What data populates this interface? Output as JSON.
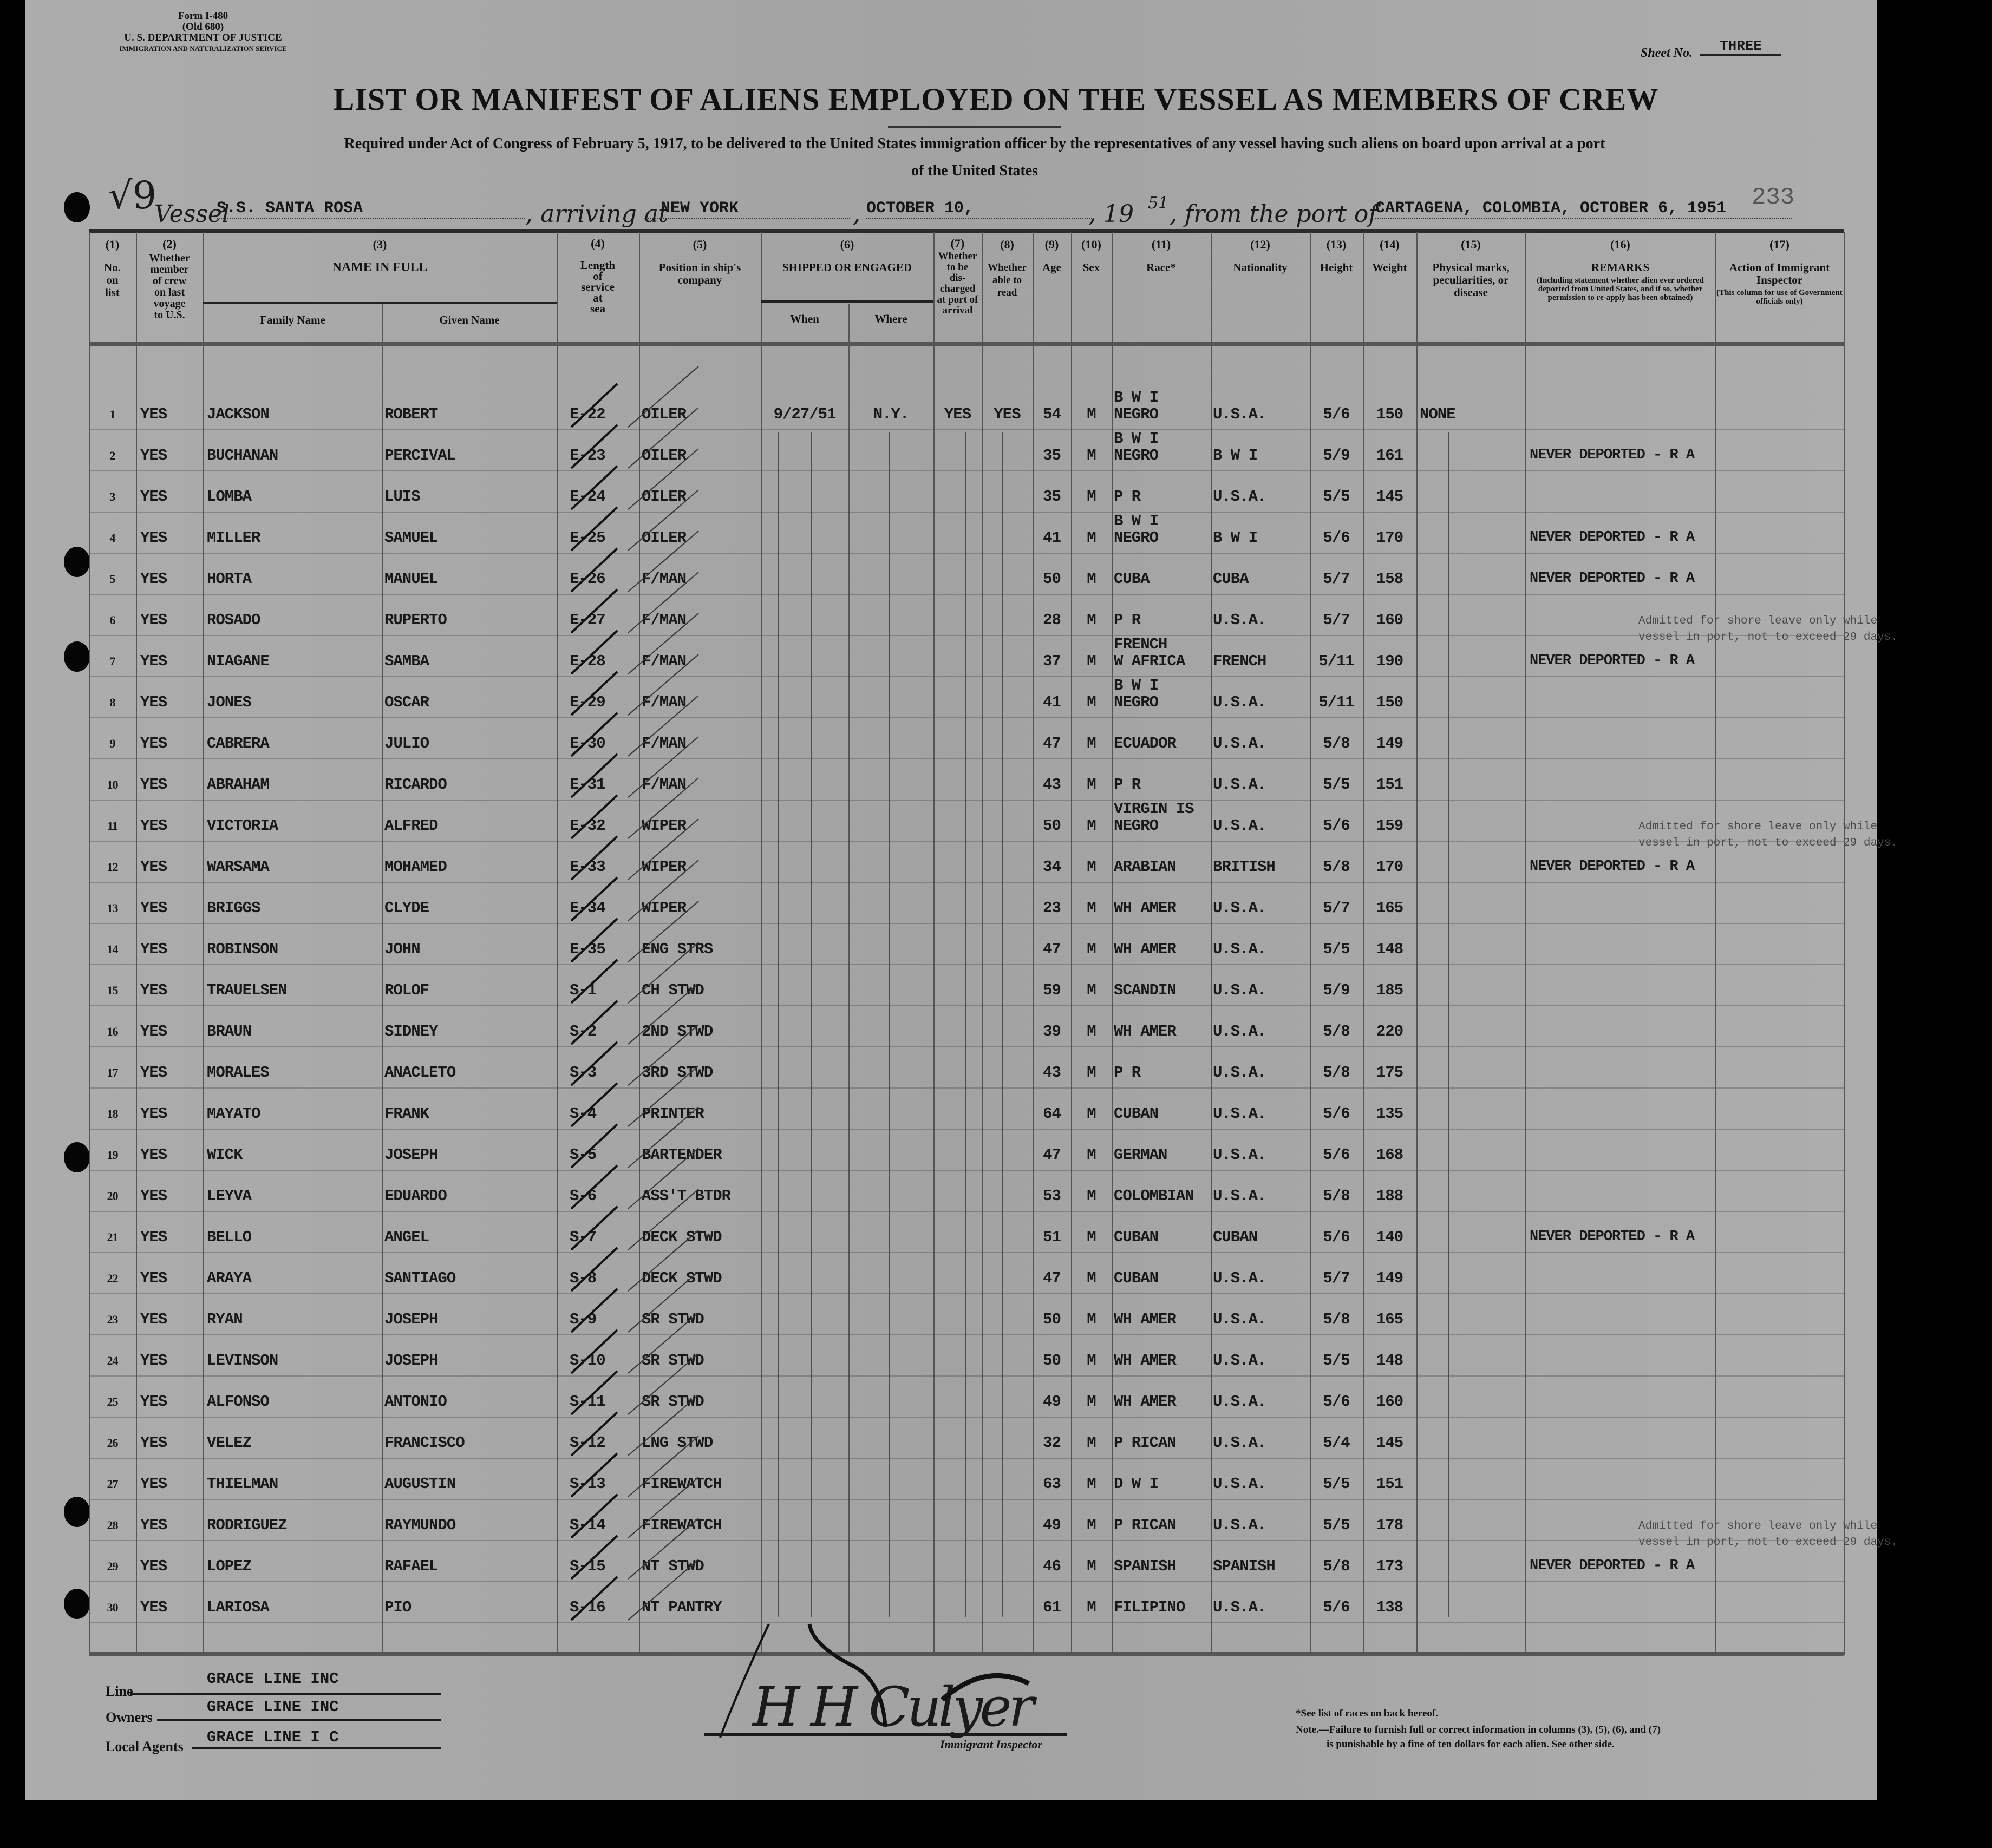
{
  "form": {
    "form_no": "Form I-480",
    "old_no": "(Old 680)",
    "department": "U. S. DEPARTMENT OF JUSTICE",
    "service": "IMMIGRATION AND NATURALIZATION SERVICE",
    "sheet_label": "Sheet No.",
    "sheet_no": "THREE",
    "stamp_number": "233"
  },
  "title": "LIST OR MANIFEST OF ALIENS EMPLOYED ON THE VESSEL AS MEMBERS OF CREW",
  "subtitle_line1": "Required under Act of Congress of February 5, 1917, to be delivered to the United States immigration officer by the representatives of any vessel having such aliens on board upon arrival at a port",
  "subtitle_line2": "of the United States",
  "voyage": {
    "handwritten_mark": "√9",
    "vessel_label": "Vessel",
    "vessel": "S.S. SANTA ROSA",
    "arriving_label": ", arriving at",
    "arriving_at": "NEW YORK",
    "date": "OCTOBER 10,",
    "year_prefix": ", 19",
    "year_suffix": "51",
    "from_label": ", from the port of",
    "from_port": "CARTAGENA, COLOMBIA, OCTOBER 6, 1951"
  },
  "headers": {
    "c1": {
      "num": "(1)",
      "text": "No.\non\nlist"
    },
    "c2": {
      "num": "(2)",
      "text": "Whether\nmember\nof crew\non last\nvoyage\nto U.S."
    },
    "c3": {
      "num": "(3)",
      "text": "NAME IN FULL",
      "family": "Family Name",
      "given": "Given Name"
    },
    "c4": {
      "num": "(4)",
      "text": "Length\nof\nservice\nat\nsea"
    },
    "c5": {
      "num": "(5)",
      "text": "Position in ship's\ncompany"
    },
    "c6": {
      "num": "(6)",
      "text": "SHIPPED OR ENGAGED",
      "when": "When",
      "where": "Where"
    },
    "c7": {
      "num": "(7)",
      "text": "Whether\nto be\ndis-\ncharged\nat port of\narrival"
    },
    "c8": {
      "num": "(8)",
      "text": "Whether\nable to\nread"
    },
    "c9": {
      "num": "(9)",
      "text": "Age"
    },
    "c10": {
      "num": "(10)",
      "text": "Sex"
    },
    "c11": {
      "num": "(11)",
      "text": "Race*"
    },
    "c12": {
      "num": "(12)",
      "text": "Nationality"
    },
    "c13": {
      "num": "(13)",
      "text": "Height"
    },
    "c14": {
      "num": "(14)",
      "text": "Weight"
    },
    "c15": {
      "num": "(15)",
      "text": "Physical marks,\npeculiarities, or\ndisease"
    },
    "c16": {
      "num": "(16)",
      "text": "REMARKS",
      "sub": "(Including statement whether alien ever ordered deported from United States, and if so, whether permission to re-apply has been obtained)"
    },
    "c17": {
      "num": "(17)",
      "text": "Action of Immigrant\nInspector",
      "sub": "(This column for use of Government officials only)"
    }
  },
  "rows": [
    {
      "no": "1",
      "crew": "YES",
      "family": "JACKSON",
      "given": "ROBERT",
      "service": "E-22",
      "position": "OILER",
      "when": "9/27/51",
      "where": "N.Y.",
      "discharged": "YES",
      "read": "YES",
      "age": "54",
      "sex": "M",
      "race": "B W I\nNEGRO",
      "nationality": "U.S.A.",
      "height": "5/6",
      "weight": "150",
      "marks": "NONE",
      "remarks": ""
    },
    {
      "no": "2",
      "crew": "YES",
      "family": "BUCHANAN",
      "given": "PERCIVAL",
      "service": "E-23",
      "position": "OILER",
      "age": "35",
      "sex": "M",
      "race": "B W I\nNEGRO",
      "nationality": "B W I",
      "height": "5/9",
      "weight": "161",
      "remarks": "NEVER DEPORTED - R A"
    },
    {
      "no": "3",
      "crew": "YES",
      "family": "LOMBA",
      "given": "LUIS",
      "service": "E-24",
      "position": "OILER",
      "age": "35",
      "sex": "M",
      "race": "P R",
      "nationality": "U.S.A.",
      "height": "5/5",
      "weight": "145",
      "remarks": ""
    },
    {
      "no": "4",
      "crew": "YES",
      "family": "MILLER",
      "given": "SAMUEL",
      "service": "E-25",
      "position": "OILER",
      "age": "41",
      "sex": "M",
      "race": "B W I\nNEGRO",
      "nationality": "B W I",
      "height": "5/6",
      "weight": "170",
      "remarks": "NEVER DEPORTED - R A"
    },
    {
      "no": "5",
      "crew": "YES",
      "family": "HORTA",
      "given": "MANUEL",
      "service": "E-26",
      "position": "F/MAN",
      "age": "50",
      "sex": "M",
      "race": "CUBA",
      "nationality": "CUBA",
      "height": "5/7",
      "weight": "158",
      "remarks": "NEVER DEPORTED - R A"
    },
    {
      "no": "6",
      "crew": "YES",
      "family": "ROSADO",
      "given": "RUPERTO",
      "service": "E-27",
      "position": "F/MAN",
      "age": "28",
      "sex": "M",
      "race": "P R",
      "nationality": "U.S.A.",
      "height": "5/7",
      "weight": "160",
      "remarks": ""
    },
    {
      "no": "7",
      "crew": "YES",
      "family": "NIAGANE",
      "given": "SAMBA",
      "service": "E-28",
      "position": "F/MAN",
      "age": "37",
      "sex": "M",
      "race": "FRENCH\nW AFRICA",
      "nationality": "FRENCH",
      "height": "5/11",
      "weight": "190",
      "remarks": "NEVER DEPORTED - R A",
      "stamp": "Admitted for shore leave only while vessel in port, not to exceed 29 days."
    },
    {
      "no": "8",
      "crew": "YES",
      "family": "JONES",
      "given": "OSCAR",
      "service": "E-29",
      "position": "F/MAN",
      "age": "41",
      "sex": "M",
      "race": "B W I\nNEGRO",
      "nationality": "U.S.A.",
      "height": "5/11",
      "weight": "150",
      "remarks": ""
    },
    {
      "no": "9",
      "crew": "YES",
      "family": "CABRERA",
      "given": "JULIO",
      "service": "E-30",
      "position": "F/MAN",
      "age": "47",
      "sex": "M",
      "race": "ECUADOR",
      "nationality": "U.S.A.",
      "height": "5/8",
      "weight": "149",
      "remarks": ""
    },
    {
      "no": "10",
      "crew": "YES",
      "family": "ABRAHAM",
      "given": "RICARDO",
      "service": "E-31",
      "position": "F/MAN",
      "age": "43",
      "sex": "M",
      "race": "P R",
      "nationality": "U.S.A.",
      "height": "5/5",
      "weight": "151",
      "remarks": ""
    },
    {
      "no": "11",
      "crew": "YES",
      "family": "VICTORIA",
      "given": "ALFRED",
      "service": "E-32",
      "position": "WIPER",
      "age": "50",
      "sex": "M",
      "race": "VIRGIN IS\nNEGRO",
      "nationality": "U.S.A.",
      "height": "5/6",
      "weight": "159",
      "remarks": ""
    },
    {
      "no": "12",
      "crew": "YES",
      "family": "WARSAMA",
      "given": "MOHAMED",
      "service": "E-33",
      "position": "WIPER",
      "age": "34",
      "sex": "M",
      "race": "ARABIAN",
      "nationality": "BRITISH",
      "height": "5/8",
      "weight": "170",
      "remarks": "NEVER DEPORTED - R A",
      "stamp": "Admitted for shore leave only while vessel in port, not to exceed 29 days."
    },
    {
      "no": "13",
      "crew": "YES",
      "family": "BRIGGS",
      "given": "CLYDE",
      "service": "E-34",
      "position": "WIPER",
      "age": "23",
      "sex": "M",
      "race": "WH AMER",
      "nationality": "U.S.A.",
      "height": "5/7",
      "weight": "165",
      "remarks": ""
    },
    {
      "no": "14",
      "crew": "YES",
      "family": "ROBINSON",
      "given": "JOHN",
      "service": "E-35",
      "position": "ENG STRS",
      "age": "47",
      "sex": "M",
      "race": "WH AMER",
      "nationality": "U.S.A.",
      "height": "5/5",
      "weight": "148",
      "remarks": ""
    },
    {
      "no": "15",
      "crew": "YES",
      "family": "TRAUELSEN",
      "given": "ROLOF",
      "service": "S-1",
      "position": "CH STWD",
      "age": "59",
      "sex": "M",
      "race": "SCANDIN",
      "nationality": "U.S.A.",
      "height": "5/9",
      "weight": "185",
      "remarks": ""
    },
    {
      "no": "16",
      "crew": "YES",
      "family": "BRAUN",
      "given": "SIDNEY",
      "service": "S-2",
      "position": "2ND STWD",
      "age": "39",
      "sex": "M",
      "race": "WH AMER",
      "nationality": "U.S.A.",
      "height": "5/8",
      "weight": "220",
      "remarks": ""
    },
    {
      "no": "17",
      "crew": "YES",
      "family": "MORALES",
      "given": "ANACLETO",
      "service": "S-3",
      "position": "3RD STWD",
      "age": "43",
      "sex": "M",
      "race": "P R",
      "nationality": "U.S.A.",
      "height": "5/8",
      "weight": "175",
      "remarks": ""
    },
    {
      "no": "18",
      "crew": "YES",
      "family": "MAYATO",
      "given": "FRANK",
      "service": "S-4",
      "position": "PRINTER",
      "age": "64",
      "sex": "M",
      "race": "CUBAN",
      "nationality": "U.S.A.",
      "height": "5/6",
      "weight": "135",
      "remarks": ""
    },
    {
      "no": "19",
      "crew": "YES",
      "family": "WICK",
      "given": "JOSEPH",
      "service": "S-5",
      "position": "BARTENDER",
      "age": "47",
      "sex": "M",
      "race": "GERMAN",
      "nationality": "U.S.A.",
      "height": "5/6",
      "weight": "168",
      "remarks": ""
    },
    {
      "no": "20",
      "crew": "YES",
      "family": "LEYVA",
      "given": "EDUARDO",
      "service": "S-6",
      "position": "ASS'T BTDR",
      "age": "53",
      "sex": "M",
      "race": "COLOMBIAN",
      "nationality": "U.S.A.",
      "height": "5/8",
      "weight": "188",
      "remarks": ""
    },
    {
      "no": "21",
      "crew": "YES",
      "family": "BELLO",
      "given": "ANGEL",
      "service": "S-7",
      "position": "DECK STWD",
      "age": "51",
      "sex": "M",
      "race": "CUBAN",
      "nationality": "CUBAN",
      "height": "5/6",
      "weight": "140",
      "remarks": "NEVER DEPORTED - R A"
    },
    {
      "no": "22",
      "crew": "YES",
      "family": "ARAYA",
      "given": "SANTIAGO",
      "service": "S-8",
      "position": "DECK STWD",
      "age": "47",
      "sex": "M",
      "race": "CUBAN",
      "nationality": "U.S.A.",
      "height": "5/7",
      "weight": "149",
      "remarks": ""
    },
    {
      "no": "23",
      "crew": "YES",
      "family": "RYAN",
      "given": "JOSEPH",
      "service": "S-9",
      "position": "SR STWD",
      "age": "50",
      "sex": "M",
      "race": "WH AMER",
      "nationality": "U.S.A.",
      "height": "5/8",
      "weight": "165",
      "remarks": ""
    },
    {
      "no": "24",
      "crew": "YES",
      "family": "LEVINSON",
      "given": "JOSEPH",
      "service": "S-10",
      "position": "SR STWD",
      "age": "50",
      "sex": "M",
      "race": "WH AMER",
      "nationality": "U.S.A.",
      "height": "5/5",
      "weight": "148",
      "remarks": ""
    },
    {
      "no": "25",
      "crew": "YES",
      "family": "ALFONSO",
      "given": "ANTONIO",
      "service": "S-11",
      "position": "SR STWD",
      "age": "49",
      "sex": "M",
      "race": "WH AMER",
      "nationality": "U.S.A.",
      "height": "5/6",
      "weight": "160",
      "remarks": ""
    },
    {
      "no": "26",
      "crew": "YES",
      "family": "VELEZ",
      "given": "FRANCISCO",
      "service": "S-12",
      "position": "LNG STWD",
      "age": "32",
      "sex": "M",
      "race": "P RICAN",
      "nationality": "U.S.A.",
      "height": "5/4",
      "weight": "145",
      "remarks": ""
    },
    {
      "no": "27",
      "crew": "YES",
      "family": "THIELMAN",
      "given": "AUGUSTIN",
      "service": "S-13",
      "position": "FIREWATCH",
      "age": "63",
      "sex": "M",
      "race": "D W I",
      "nationality": "U.S.A.",
      "height": "5/5",
      "weight": "151",
      "remarks": ""
    },
    {
      "no": "28",
      "crew": "YES",
      "family": "RODRIGUEZ",
      "given": "RAYMUNDO",
      "service": "S-14",
      "position": "FIREWATCH",
      "age": "49",
      "sex": "M",
      "race": "P RICAN",
      "nationality": "U.S.A.",
      "height": "5/5",
      "weight": "178",
      "remarks": ""
    },
    {
      "no": "29",
      "crew": "YES",
      "family": "LOPEZ",
      "given": "RAFAEL",
      "service": "S-15",
      "position": "NT STWD",
      "age": "46",
      "sex": "M",
      "race": "SPANISH",
      "nationality": "SPANISH",
      "height": "5/8",
      "weight": "173",
      "remarks": "NEVER DEPORTED - R A",
      "stamp": "Admitted for shore leave only while vessel in port, not to exceed 29 days."
    },
    {
      "no": "30",
      "crew": "YES",
      "family": "LARIOSA",
      "given": "PIO",
      "service": "S-16",
      "position": "NT PANTRY",
      "age": "61",
      "sex": "M",
      "race": "FILIPINO",
      "nationality": "U.S.A.",
      "height": "5/6",
      "weight": "138",
      "remarks": ""
    }
  ],
  "footer": {
    "line_label": "Line",
    "line": "GRACE LINE INC",
    "owners_label": "Owners",
    "owners": "GRACE LINE INC",
    "agents_label": "Local Agents",
    "agents": "GRACE LINE I C",
    "signature": "H H Culyer",
    "inspector_label": "Immigrant Inspector",
    "race_note": "*See list of races on back hereof.",
    "note_line1": "Note.—Failure to furnish full or correct information in columns (3), (5), (6), and (7)",
    "note_line2": "is punishable by a fine of ten dollars for each alien. See other side."
  }
}
